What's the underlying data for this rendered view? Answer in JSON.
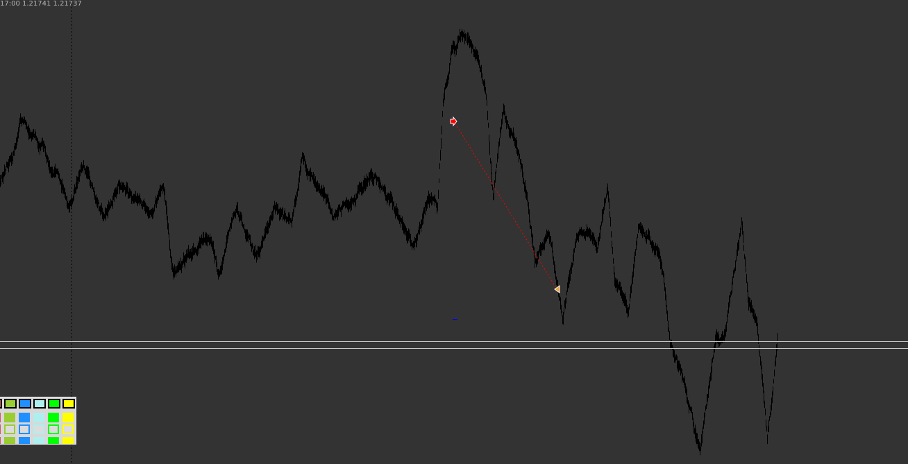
{
  "chart_info_text": "17:00 1.21741 1.21737",
  "chart_data": {
    "type": "line",
    "title": "",
    "xlabel": "",
    "ylabel": "",
    "grid": false,
    "background": "#333333",
    "line_color": "#000000",
    "crosshair": true,
    "trade_markers": [
      {
        "kind": "entry-arrow",
        "color": "#ff0000"
      },
      {
        "kind": "exit-arrow",
        "color": "#f0a030"
      }
    ],
    "trade_line_color": "#ff0000"
  },
  "palette": {
    "colors": [
      "#cd5c5c",
      "#9acd32",
      "#1e90ff",
      "#afeeee",
      "#00ff00",
      "#ffff00"
    ]
  }
}
